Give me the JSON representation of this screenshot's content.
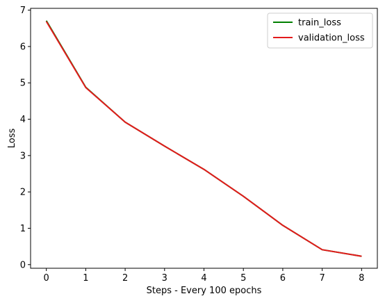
{
  "chart_data": {
    "type": "line",
    "xlabel": "Steps - Every 100 epochs",
    "ylabel": "Loss",
    "x": [
      0,
      1,
      2,
      3,
      4,
      5,
      6,
      7,
      8
    ],
    "xlim": [
      -0.4,
      8.4
    ],
    "ylim": [
      -0.1,
      7.05
    ],
    "xticks": [
      0,
      1,
      2,
      3,
      4,
      5,
      6,
      7,
      8
    ],
    "yticks": [
      0,
      1,
      2,
      3,
      4,
      5,
      6,
      7
    ],
    "grid": false,
    "legend_position": "top-right",
    "series": [
      {
        "name": "train_loss",
        "color": "#008000",
        "values": [
          6.71,
          4.88,
          3.92,
          3.26,
          2.62,
          1.88,
          1.08,
          0.41,
          0.23
        ]
      },
      {
        "name": "validation_loss",
        "color": "#e31a1c",
        "values": [
          6.69,
          4.87,
          3.92,
          3.26,
          2.62,
          1.88,
          1.08,
          0.41,
          0.23
        ]
      }
    ]
  }
}
